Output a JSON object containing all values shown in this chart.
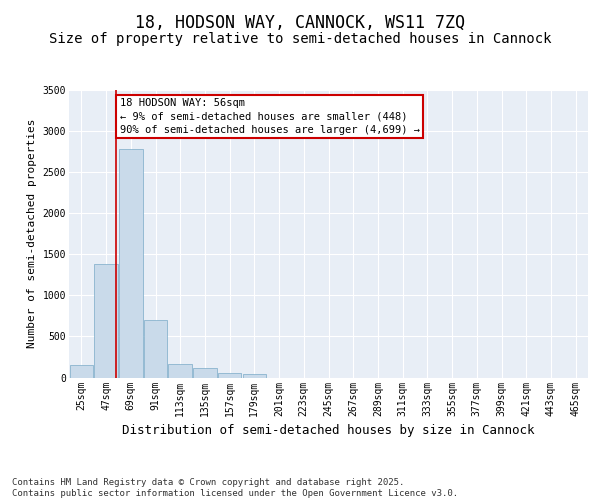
{
  "title_line1": "18, HODSON WAY, CANNOCK, WS11 7ZQ",
  "title_line2": "Size of property relative to semi-detached houses in Cannock",
  "xlabel": "Distribution of semi-detached houses by size in Cannock",
  "ylabel": "Number of semi-detached properties",
  "categories": [
    "25sqm",
    "47sqm",
    "69sqm",
    "91sqm",
    "113sqm",
    "135sqm",
    "157sqm",
    "179sqm",
    "201sqm",
    "223sqm",
    "245sqm",
    "267sqm",
    "289sqm",
    "311sqm",
    "333sqm",
    "355sqm",
    "377sqm",
    "399sqm",
    "421sqm",
    "443sqm",
    "465sqm"
  ],
  "values": [
    150,
    1380,
    2780,
    700,
    170,
    110,
    60,
    40,
    0,
    0,
    0,
    0,
    0,
    0,
    0,
    0,
    0,
    0,
    0,
    0,
    0
  ],
  "bar_color": "#c9daea",
  "bar_edge_color": "#7aaac8",
  "bg_color": "#e8eef6",
  "grid_color": "#ffffff",
  "vline_color": "#cc0000",
  "vline_x": 1.4,
  "annotation_text": "18 HODSON WAY: 56sqm\n← 9% of semi-detached houses are smaller (448)\n90% of semi-detached houses are larger (4,699) →",
  "annotation_box_color": "#cc0000",
  "ylim": [
    0,
    3500
  ],
  "yticks": [
    0,
    500,
    1000,
    1500,
    2000,
    2500,
    3000,
    3500
  ],
  "footnote": "Contains HM Land Registry data © Crown copyright and database right 2025.\nContains public sector information licensed under the Open Government Licence v3.0.",
  "title1_fontsize": 12,
  "title2_fontsize": 10,
  "xlabel_fontsize": 9,
  "ylabel_fontsize": 8,
  "tick_fontsize": 7,
  "annot_fontsize": 7.5,
  "footnote_fontsize": 6.5
}
